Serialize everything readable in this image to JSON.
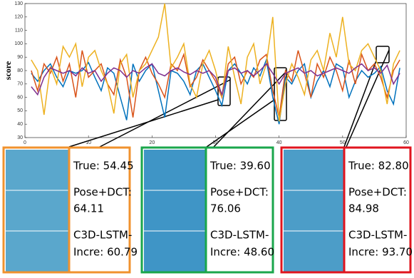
{
  "chart_data": {
    "type": "line",
    "ylabel": "score",
    "x": [
      1,
      2,
      3,
      4,
      5,
      6,
      7,
      8,
      9,
      10,
      11,
      12,
      13,
      14,
      15,
      16,
      17,
      18,
      19,
      20,
      21,
      22,
      23,
      24,
      25,
      26,
      27,
      28,
      29,
      30,
      31,
      32,
      33,
      34,
      35,
      36,
      37,
      38,
      39,
      40,
      41,
      42,
      43,
      44,
      45,
      46,
      47,
      48,
      49,
      50,
      51,
      52,
      53,
      54,
      55,
      56,
      57,
      58,
      59
    ],
    "series": [
      {
        "color": "#0072bd",
        "values": [
          78,
          72,
          80,
          85,
          75,
          68,
          80,
          78,
          80,
          86,
          75,
          65,
          82,
          78,
          60,
          43,
          85,
          72,
          80,
          85,
          65,
          45,
          80,
          78,
          72,
          62,
          80,
          85,
          75,
          65,
          54,
          80,
          85,
          78,
          70,
          82,
          76,
          88,
          60,
          40,
          75,
          70,
          80,
          85,
          60,
          72,
          80,
          68,
          85,
          82,
          60,
          72,
          80,
          75,
          78,
          83,
          65,
          55,
          82
        ]
      },
      {
        "color": "#d95319",
        "values": [
          80,
          65,
          85,
          78,
          90,
          72,
          85,
          60,
          95,
          75,
          80,
          85,
          70,
          62,
          88,
          75,
          45,
          80,
          90,
          78,
          70,
          60,
          85,
          80,
          92,
          68,
          75,
          88,
          80,
          72,
          60,
          85,
          90,
          70,
          80,
          75,
          88,
          92,
          65,
          45,
          80,
          72,
          95,
          78,
          60,
          85,
          75,
          90,
          80,
          65,
          88,
          70,
          92,
          80,
          85,
          75,
          60,
          80,
          88
        ]
      },
      {
        "color": "#edb120",
        "values": [
          88,
          80,
          47,
          83,
          70,
          98,
          90,
          100,
          68,
          90,
          95,
          80,
          70,
          48,
          85,
          92,
          60,
          80,
          85,
          95,
          105,
          130,
          82,
          90,
          100,
          70,
          60,
          85,
          95,
          80,
          60,
          98,
          75,
          55,
          90,
          100,
          70,
          85,
          120,
          42,
          70,
          85,
          75,
          62,
          88,
          95,
          80,
          108,
          90,
          120,
          85,
          80,
          95,
          100,
          90,
          80,
          55,
          85,
          95
        ]
      },
      {
        "color": "#7e2f8e",
        "values": [
          68,
          62,
          75,
          82,
          80,
          78,
          80,
          76,
          82,
          78,
          80,
          72,
          78,
          82,
          80,
          75,
          80,
          78,
          82,
          85,
          78,
          76,
          80,
          82,
          79,
          77,
          80,
          78,
          80,
          75,
          62,
          80,
          82,
          78,
          80,
          76,
          80,
          85,
          78,
          70,
          78,
          80,
          82,
          78,
          80,
          76,
          78,
          80,
          82,
          80,
          78,
          82,
          85,
          80,
          82,
          78,
          84,
          70,
          78
        ]
      }
    ],
    "xlim": [
      0,
      60
    ],
    "xticks": [
      0,
      10,
      20,
      30,
      40,
      50,
      60
    ],
    "ylim": [
      30,
      130
    ],
    "yticks": [
      30,
      40,
      50,
      60,
      70,
      80,
      90,
      100,
      110,
      120,
      130
    ],
    "annotations": [
      [
        "True: 54.45",
        "Pose+DCT:",
        "64.11",
        "C3D-LSTM-",
        "Incre: 60.79"
      ],
      [
        "True: 39.60",
        "Pose+DCT:",
        "76.06",
        "C3D-LSTM-",
        "Incre: 48.60"
      ],
      [
        "True: 82.80",
        "Pose+DCT:",
        "84.98",
        "C3D-LSTM-",
        "Incre: 93.70"
      ]
    ]
  }
}
